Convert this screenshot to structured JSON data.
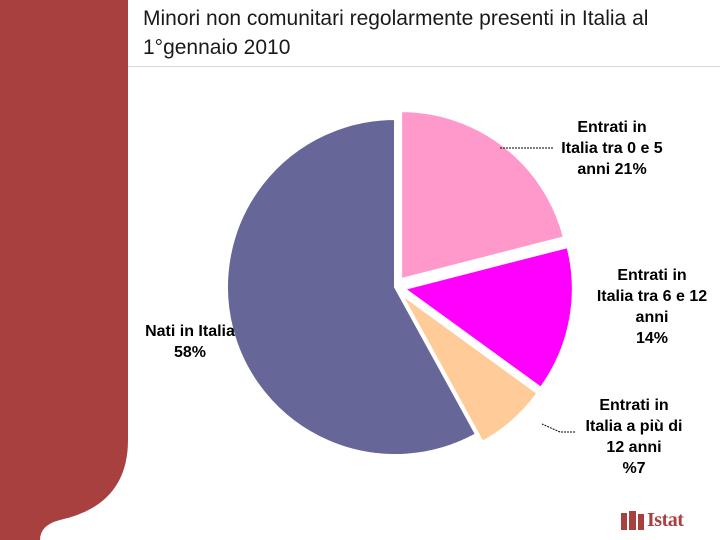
{
  "slide": {
    "title": "Minori non comunitari regolarmente presenti in Italia al 1°gennaio 2010"
  },
  "logo": {
    "text": "Istat"
  },
  "colors": {
    "sidebar": "#a84040",
    "slices": [
      "#ff99cc",
      "#ff00ff",
      "#ffcc99",
      "#666699"
    ]
  },
  "chart_data": {
    "type": "pie",
    "title": "Minori non comunitari regolarmente presenti in Italia al 1°gennaio 2010",
    "slices": [
      {
        "label_lines": [
          "Entrati in",
          "Italia tra 0 e 5",
          "anni 21%"
        ],
        "value": 21,
        "color": "#ff99cc",
        "exploded": true
      },
      {
        "label_lines": [
          "Entrati in",
          "Italia tra 6 e 12",
          "anni",
          "14%"
        ],
        "value": 14,
        "color": "#ff00ff",
        "exploded": true
      },
      {
        "label_lines": [
          "Entrati in",
          "Italia a più di",
          "12 anni",
          "%7"
        ],
        "value": 7,
        "color": "#ffcc99",
        "exploded": true
      },
      {
        "label_lines": [
          "Nati in Italia",
          "58%"
        ],
        "value": 58,
        "color": "#666699",
        "exploded": false
      }
    ],
    "start_angle_deg": 0,
    "direction": "clockwise"
  }
}
